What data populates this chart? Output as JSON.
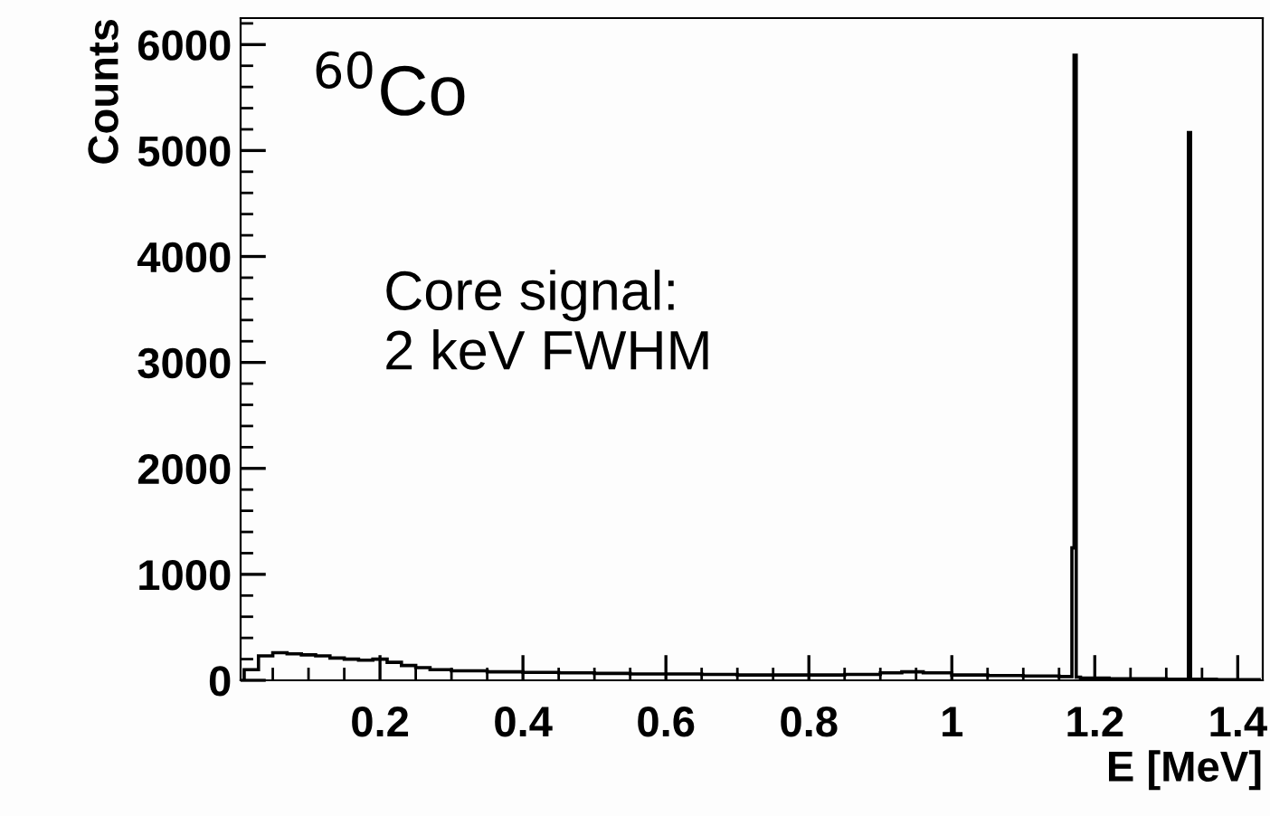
{
  "chart_data": {
    "type": "histogram",
    "xlabel": "E [MeV]",
    "ylabel": "Counts",
    "annotations": [
      "$^{60}$Co",
      "Core signal:\n2 keV FWHM"
    ],
    "bins": [
      0.01,
      0.03,
      0.05,
      0.07,
      0.09,
      0.11,
      0.13,
      0.15,
      0.17,
      0.19,
      0.21,
      0.23,
      0.25,
      0.27,
      0.3,
      0.35,
      0.4,
      0.45,
      0.5,
      0.55,
      0.6,
      0.65,
      0.7,
      0.75,
      0.8,
      0.85,
      0.9,
      0.93,
      0.96,
      1.0,
      1.05,
      1.1,
      1.15,
      1.168,
      1.171,
      1.174,
      1.18,
      1.22,
      1.26,
      1.3,
      1.331,
      1.334,
      1.37,
      1.43
    ],
    "values": [
      100,
      230,
      260,
      250,
      240,
      230,
      210,
      200,
      190,
      200,
      170,
      140,
      120,
      100,
      90,
      80,
      75,
      70,
      65,
      60,
      60,
      55,
      50,
      50,
      50,
      55,
      70,
      80,
      70,
      50,
      45,
      40,
      35,
      1250,
      5900,
      30,
      20,
      15,
      15,
      10,
      5170,
      10,
      5
    ],
    "color": "#000000",
    "xlim": [
      0.005,
      1.435
    ],
    "xticks": [
      0.2,
      0.4,
      0.6,
      0.8,
      1,
      1.2,
      1.4
    ],
    "ylim": [
      0,
      6250
    ],
    "yticks": [
      0,
      1000,
      2000,
      3000,
      4000,
      5000,
      6000
    ],
    "grid": false,
    "legend": false
  }
}
